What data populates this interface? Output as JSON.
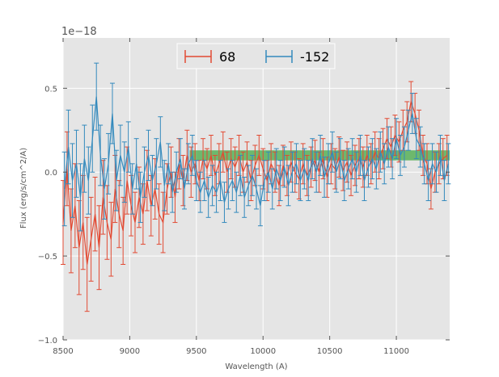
{
  "chart_data": {
    "type": "line",
    "title": "",
    "xlabel": "Wavelength (A)",
    "ylabel": "Flux (erg/s/cm^2/A)",
    "y_offset_label": "1e−18",
    "y_scale": 1e-18,
    "xlim": [
      8500,
      11400
    ],
    "ylim": [
      -1.0,
      0.8
    ],
    "xticks": [
      8500,
      9000,
      9500,
      10000,
      10500,
      11000
    ],
    "xtick_labels": [
      "8500",
      "9000",
      "9500",
      "10000",
      "10500",
      "11000"
    ],
    "yticks": [
      -1.0,
      -0.5,
      0.0,
      0.5
    ],
    "ytick_labels": [
      "−1.0",
      "−0.5",
      "0.0",
      "0.5"
    ],
    "grid": true,
    "background": "#e5e5e5",
    "legend_position": "top-center",
    "shaded_band": {
      "x": [
        9450,
        11400
      ],
      "y": [
        0.07,
        0.13
      ],
      "color": "#2ca02c",
      "opacity": 0.65
    },
    "series": [
      {
        "name": "68",
        "color": "#e24a33",
        "errorbars": true,
        "x": [
          8500,
          8530,
          8560,
          8590,
          8620,
          8650,
          8680,
          8710,
          8740,
          8770,
          8800,
          8830,
          8860,
          8890,
          8920,
          8950,
          8980,
          9010,
          9040,
          9070,
          9100,
          9130,
          9160,
          9190,
          9220,
          9250,
          9280,
          9310,
          9340,
          9370,
          9400,
          9430,
          9460,
          9490,
          9520,
          9550,
          9580,
          9610,
          9640,
          9670,
          9700,
          9730,
          9760,
          9790,
          9820,
          9850,
          9880,
          9910,
          9940,
          9970,
          10000,
          10030,
          10060,
          10090,
          10120,
          10150,
          10180,
          10210,
          10240,
          10270,
          10300,
          10330,
          10360,
          10390,
          10420,
          10450,
          10480,
          10510,
          10540,
          10570,
          10600,
          10630,
          10660,
          10690,
          10720,
          10750,
          10780,
          10810,
          10840,
          10870,
          10900,
          10930,
          10960,
          10990,
          11020,
          11050,
          11080,
          11110,
          11140,
          11170,
          11200,
          11230,
          11260,
          11290,
          11320,
          11350,
          11380
        ],
        "y": [
          -0.3,
          0.02,
          -0.35,
          -0.2,
          -0.45,
          -0.3,
          -0.55,
          -0.4,
          -0.25,
          -0.45,
          -0.15,
          -0.3,
          -0.4,
          -0.1,
          -0.25,
          -0.35,
          -0.05,
          -0.2,
          -0.3,
          -0.15,
          -0.25,
          -0.05,
          -0.2,
          -0.1,
          -0.25,
          -0.3,
          -0.1,
          0.0,
          -0.15,
          0.05,
          -0.05,
          0.1,
          0.0,
          0.05,
          -0.05,
          0.08,
          0.02,
          0.1,
          -0.02,
          0.05,
          0.12,
          0.0,
          0.08,
          0.03,
          0.1,
          0.0,
          0.06,
          -0.05,
          0.04,
          0.1,
          0.02,
          -0.05,
          0.05,
          0.0,
          -0.08,
          0.04,
          -0.02,
          0.06,
          0.0,
          -0.04,
          0.05,
          -0.02,
          0.03,
          0.07,
          0.0,
          0.08,
          -0.03,
          0.05,
          0.02,
          0.09,
          0.01,
          0.06,
          -0.02,
          0.04,
          0.08,
          0.03,
          0.1,
          0.05,
          0.12,
          0.08,
          0.14,
          0.2,
          0.15,
          0.22,
          0.18,
          0.25,
          0.3,
          0.42,
          0.35,
          0.25,
          0.1,
          0.05,
          -0.1,
          0.0,
          0.05,
          0.08,
          0.1
        ],
        "err": [
          0.25,
          0.22,
          0.25,
          0.25,
          0.28,
          0.28,
          0.28,
          0.25,
          0.22,
          0.25,
          0.22,
          0.22,
          0.22,
          0.2,
          0.2,
          0.2,
          0.2,
          0.18,
          0.18,
          0.18,
          0.18,
          0.18,
          0.18,
          0.18,
          0.18,
          0.18,
          0.15,
          0.15,
          0.15,
          0.15,
          0.15,
          0.15,
          0.15,
          0.12,
          0.12,
          0.12,
          0.12,
          0.12,
          0.12,
          0.12,
          0.12,
          0.12,
          0.12,
          0.12,
          0.12,
          0.12,
          0.12,
          0.12,
          0.12,
          0.12,
          0.12,
          0.12,
          0.12,
          0.12,
          0.12,
          0.12,
          0.12,
          0.12,
          0.12,
          0.12,
          0.12,
          0.12,
          0.12,
          0.12,
          0.12,
          0.12,
          0.12,
          0.12,
          0.12,
          0.12,
          0.12,
          0.12,
          0.12,
          0.12,
          0.12,
          0.12,
          0.12,
          0.12,
          0.12,
          0.12,
          0.12,
          0.12,
          0.12,
          0.12,
          0.12,
          0.12,
          0.12,
          0.12,
          0.12,
          0.12,
          0.12,
          0.12,
          0.12,
          0.12,
          0.12,
          0.12,
          0.12
        ]
      },
      {
        "name": "-152",
        "color": "#348abd",
        "errorbars": true,
        "x": [
          8510,
          8540,
          8570,
          8600,
          8630,
          8660,
          8690,
          8720,
          8750,
          8780,
          8810,
          8840,
          8870,
          8900,
          8930,
          8960,
          8990,
          9020,
          9050,
          9080,
          9110,
          9140,
          9170,
          9200,
          9230,
          9260,
          9290,
          9320,
          9350,
          9380,
          9410,
          9440,
          9470,
          9500,
          9530,
          9560,
          9590,
          9620,
          9650,
          9680,
          9710,
          9740,
          9770,
          9800,
          9830,
          9860,
          9890,
          9920,
          9950,
          9980,
          10010,
          10040,
          10070,
          10100,
          10130,
          10160,
          10190,
          10220,
          10250,
          10280,
          10310,
          10340,
          10370,
          10400,
          10430,
          10460,
          10490,
          10520,
          10550,
          10580,
          10610,
          10640,
          10670,
          10700,
          10730,
          10760,
          10790,
          10820,
          10850,
          10880,
          10910,
          10940,
          10970,
          11000,
          11030,
          11060,
          11090,
          11120,
          11150,
          11180,
          11210,
          11240,
          11270,
          11300,
          11330,
          11360,
          11390
        ],
        "y": [
          -0.1,
          0.15,
          -0.05,
          0.05,
          -0.15,
          0.08,
          -0.05,
          0.2,
          0.45,
          0.1,
          -0.1,
          0.05,
          0.35,
          -0.05,
          0.1,
          0.0,
          0.15,
          -0.1,
          0.05,
          -0.15,
          0.0,
          0.1,
          -0.05,
          0.05,
          0.18,
          -0.08,
          0.05,
          -0.12,
          0.0,
          0.08,
          -0.1,
          0.05,
          0.1,
          -0.05,
          -0.12,
          -0.05,
          -0.15,
          -0.08,
          -0.12,
          -0.05,
          -0.18,
          -0.1,
          -0.05,
          -0.12,
          -0.02,
          -0.15,
          -0.08,
          -0.02,
          -0.1,
          -0.2,
          -0.05,
          0.0,
          -0.1,
          0.02,
          -0.05,
          0.03,
          -0.08,
          0.0,
          0.05,
          -0.05,
          0.02,
          -0.05,
          0.08,
          0.0,
          0.1,
          -0.03,
          0.05,
          0.12,
          0.0,
          0.08,
          -0.05,
          0.02,
          0.08,
          0.0,
          0.1,
          -0.05,
          0.03,
          0.08,
          0.02,
          0.12,
          0.05,
          0.15,
          0.08,
          0.2,
          0.1,
          0.15,
          0.25,
          0.35,
          0.2,
          0.15,
          0.05,
          -0.05,
          0.05,
          0.0,
          0.1,
          -0.05,
          0.05
        ],
        "err": [
          0.22,
          0.22,
          0.22,
          0.2,
          0.2,
          0.2,
          0.2,
          0.2,
          0.2,
          0.18,
          0.18,
          0.18,
          0.18,
          0.18,
          0.18,
          0.18,
          0.15,
          0.15,
          0.15,
          0.15,
          0.15,
          0.15,
          0.15,
          0.15,
          0.15,
          0.15,
          0.12,
          0.12,
          0.12,
          0.12,
          0.12,
          0.12,
          0.12,
          0.12,
          0.12,
          0.12,
          0.12,
          0.12,
          0.12,
          0.12,
          0.12,
          0.12,
          0.12,
          0.12,
          0.12,
          0.12,
          0.12,
          0.12,
          0.12,
          0.12,
          0.12,
          0.12,
          0.12,
          0.12,
          0.12,
          0.12,
          0.12,
          0.12,
          0.12,
          0.12,
          0.12,
          0.12,
          0.12,
          0.12,
          0.12,
          0.12,
          0.12,
          0.12,
          0.12,
          0.12,
          0.12,
          0.12,
          0.12,
          0.12,
          0.12,
          0.12,
          0.12,
          0.12,
          0.12,
          0.12,
          0.12,
          0.12,
          0.12,
          0.12,
          0.12,
          0.12,
          0.12,
          0.12,
          0.12,
          0.12,
          0.12,
          0.12,
          0.12,
          0.12,
          0.12,
          0.12,
          0.12
        ]
      }
    ]
  }
}
